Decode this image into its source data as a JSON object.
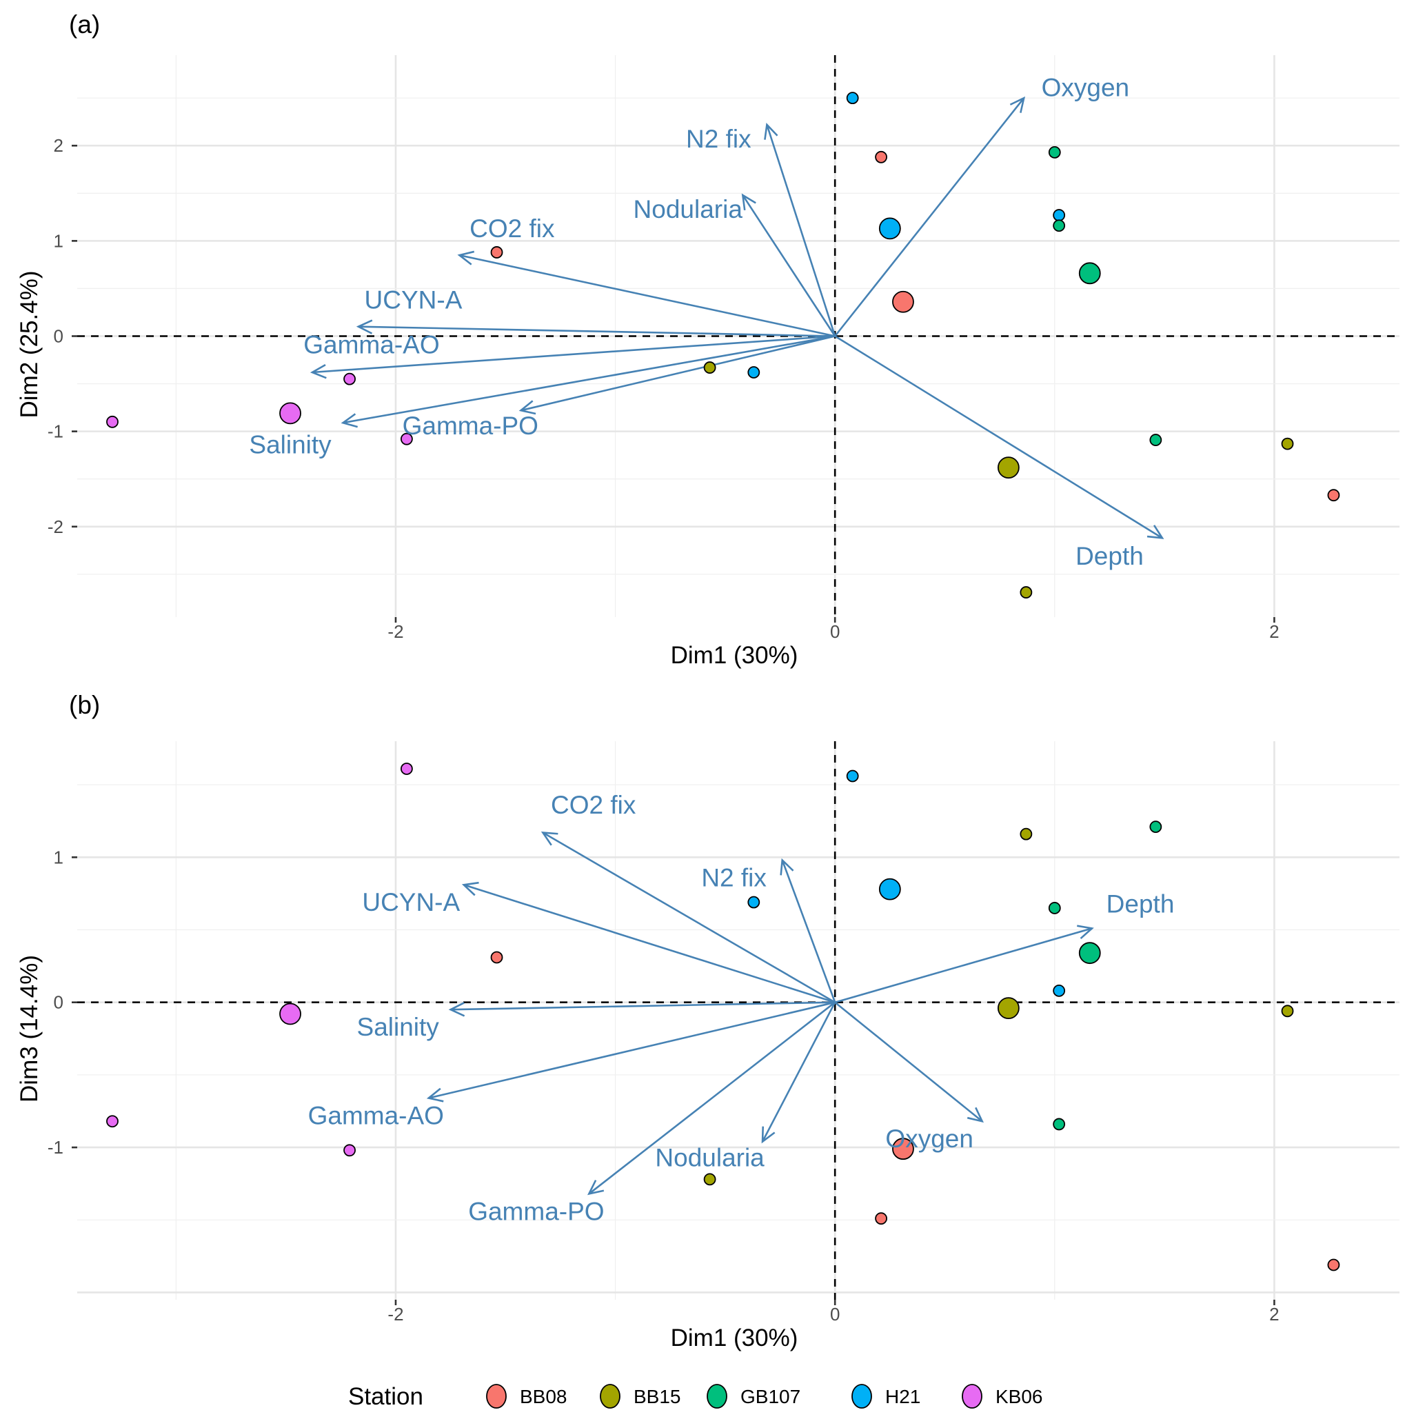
{
  "chart_data": {
    "type": "scatter",
    "subtype": "PCA biplot",
    "legend": {
      "title": "Station",
      "position": "bottom",
      "entries": [
        {
          "name": "BB08",
          "color": "#f8766d"
        },
        {
          "name": "BB15",
          "color": "#a3a500"
        },
        {
          "name": "GB107",
          "color": "#00bf7d"
        },
        {
          "name": "H21",
          "color": "#00b0f6"
        },
        {
          "name": "KB06",
          "color": "#e76bf3"
        }
      ]
    },
    "arrow_color": "#4682b4",
    "panels": [
      {
        "tag": "(a)",
        "xlabel": "Dim1 (30%)",
        "ylabel": "Dim2 (25.4%)",
        "xlim": [
          -3.45,
          2.57
        ],
        "ylim": [
          -2.95,
          2.95
        ],
        "xticks": [
          -2,
          0,
          2
        ],
        "yticks": [
          -2,
          -1,
          0,
          1,
          2
        ],
        "grid": true,
        "points": [
          {
            "station": "H21",
            "x": 0.08,
            "y": 2.5,
            "size": "small"
          },
          {
            "station": "BB08",
            "x": 0.21,
            "y": 1.88,
            "size": "small"
          },
          {
            "station": "GB107",
            "x": 1.0,
            "y": 1.93,
            "size": "small"
          },
          {
            "station": "H21",
            "x": 0.25,
            "y": 1.13,
            "size": "large"
          },
          {
            "station": "H21",
            "x": 1.02,
            "y": 1.27,
            "size": "small"
          },
          {
            "station": "GB107",
            "x": 1.02,
            "y": 1.16,
            "size": "small"
          },
          {
            "station": "GB107",
            "x": 1.16,
            "y": 0.66,
            "size": "large"
          },
          {
            "station": "BB08",
            "x": 0.31,
            "y": 0.36,
            "size": "large"
          },
          {
            "station": "BB08",
            "x": -1.54,
            "y": 0.88,
            "size": "small"
          },
          {
            "station": "BB15",
            "x": -0.57,
            "y": -0.33,
            "size": "small"
          },
          {
            "station": "H21",
            "x": -0.37,
            "y": -0.38,
            "size": "small"
          },
          {
            "station": "KB06",
            "x": -2.21,
            "y": -0.45,
            "size": "small"
          },
          {
            "station": "KB06",
            "x": -2.48,
            "y": -0.81,
            "size": "large"
          },
          {
            "station": "KB06",
            "x": -3.29,
            "y": -0.9,
            "size": "small"
          },
          {
            "station": "KB06",
            "x": -1.95,
            "y": -1.08,
            "size": "small"
          },
          {
            "station": "GB107",
            "x": 1.46,
            "y": -1.09,
            "size": "small"
          },
          {
            "station": "BB15",
            "x": 2.06,
            "y": -1.13,
            "size": "small"
          },
          {
            "station": "BB15",
            "x": 0.79,
            "y": -1.38,
            "size": "large"
          },
          {
            "station": "BB08",
            "x": 2.27,
            "y": -1.67,
            "size": "small"
          },
          {
            "station": "BB15",
            "x": 0.87,
            "y": -2.69,
            "size": "small"
          }
        ],
        "arrows": [
          {
            "label": "Oxygen",
            "x": 0.86,
            "y": 2.5,
            "lx": 1.14,
            "ly": 2.52
          },
          {
            "label": "N2 fix",
            "x": -0.31,
            "y": 2.22,
            "lx": -0.53,
            "ly": 1.98
          },
          {
            "label": "Nodularia",
            "x": -0.42,
            "y": 1.48,
            "lx": -0.67,
            "ly": 1.24
          },
          {
            "label": "CO2 fix",
            "x": -1.71,
            "y": 0.85,
            "lx": -1.47,
            "ly": 1.04
          },
          {
            "label": "UCYN-A",
            "x": -2.17,
            "y": 0.1,
            "lx": -1.92,
            "ly": 0.29
          },
          {
            "label": "Gamma-AO",
            "x": -2.38,
            "y": -0.38,
            "lx": -2.11,
            "ly": -0.18
          },
          {
            "label": "Salinity",
            "x": -2.24,
            "y": -0.91,
            "lx": -2.48,
            "ly": -1.23
          },
          {
            "label": "Gamma-PO",
            "x": -1.43,
            "y": -0.78,
            "lx": -1.66,
            "ly": -1.03
          },
          {
            "label": "Depth",
            "x": 1.49,
            "y": -2.12,
            "lx": 1.25,
            "ly": -2.4
          }
        ]
      },
      {
        "tag": "(b)",
        "xlabel": "Dim1 (30%)",
        "ylabel": "Dim3 (14.4%)",
        "xlim": [
          -3.45,
          2.57
        ],
        "ylim": [
          -2.05,
          1.8
        ],
        "xticks": [
          -2,
          0,
          2
        ],
        "yticks": [
          -1,
          0,
          1
        ],
        "grid": true,
        "points": [
          {
            "station": "H21",
            "x": 0.08,
            "y": 1.56,
            "size": "small"
          },
          {
            "station": "BB08",
            "x": 0.21,
            "y": -1.49,
            "size": "small"
          },
          {
            "station": "GB107",
            "x": 1.0,
            "y": 0.65,
            "size": "small"
          },
          {
            "station": "H21",
            "x": 0.25,
            "y": 0.78,
            "size": "large"
          },
          {
            "station": "H21",
            "x": 1.02,
            "y": 0.08,
            "size": "small"
          },
          {
            "station": "GB107",
            "x": 1.02,
            "y": -0.84,
            "size": "small"
          },
          {
            "station": "GB107",
            "x": 1.16,
            "y": 0.34,
            "size": "large"
          },
          {
            "station": "BB08",
            "x": 0.31,
            "y": -1.01,
            "size": "large"
          },
          {
            "station": "BB08",
            "x": -1.54,
            "y": 0.31,
            "size": "small"
          },
          {
            "station": "BB15",
            "x": -0.57,
            "y": -1.22,
            "size": "small"
          },
          {
            "station": "H21",
            "x": -0.37,
            "y": 0.69,
            "size": "small"
          },
          {
            "station": "KB06",
            "x": -2.21,
            "y": -1.02,
            "size": "small"
          },
          {
            "station": "KB06",
            "x": -2.48,
            "y": -0.08,
            "size": "large"
          },
          {
            "station": "KB06",
            "x": -3.29,
            "y": -0.82,
            "size": "small"
          },
          {
            "station": "KB06",
            "x": -1.95,
            "y": 1.61,
            "size": "small"
          },
          {
            "station": "GB107",
            "x": 1.46,
            "y": 1.21,
            "size": "small"
          },
          {
            "station": "BB15",
            "x": 2.06,
            "y": -0.06,
            "size": "small"
          },
          {
            "station": "BB15",
            "x": 0.79,
            "y": -0.04,
            "size": "large"
          },
          {
            "station": "BB08",
            "x": 2.27,
            "y": -1.81,
            "size": "small"
          },
          {
            "station": "BB15",
            "x": 0.87,
            "y": 1.16,
            "size": "small"
          }
        ],
        "arrows": [
          {
            "label": "CO2 fix",
            "x": -1.33,
            "y": 1.17,
            "lx": -1.1,
            "ly": 1.3
          },
          {
            "label": "UCYN-A",
            "x": -1.69,
            "y": 0.81,
            "lx": -1.93,
            "ly": 0.63
          },
          {
            "label": "N2 fix",
            "x": -0.24,
            "y": 0.98,
            "lx": -0.46,
            "ly": 0.8
          },
          {
            "label": "Depth",
            "x": 1.17,
            "y": 0.51,
            "lx": 1.39,
            "ly": 0.62
          },
          {
            "label": "Salinity",
            "x": -1.75,
            "y": -0.05,
            "lx": -1.99,
            "ly": -0.23
          },
          {
            "label": "Gamma-AO",
            "x": -1.85,
            "y": -0.66,
            "lx": -2.09,
            "ly": -0.84
          },
          {
            "label": "Gamma-PO",
            "x": -1.12,
            "y": -1.32,
            "lx": -1.36,
            "ly": -1.5
          },
          {
            "label": "Nodularia",
            "x": -0.33,
            "y": -0.96,
            "lx": -0.57,
            "ly": -1.13
          },
          {
            "label": "Oxygen",
            "x": 0.67,
            "y": -0.82,
            "lx": 0.43,
            "ly": -1.0
          }
        ]
      }
    ]
  }
}
